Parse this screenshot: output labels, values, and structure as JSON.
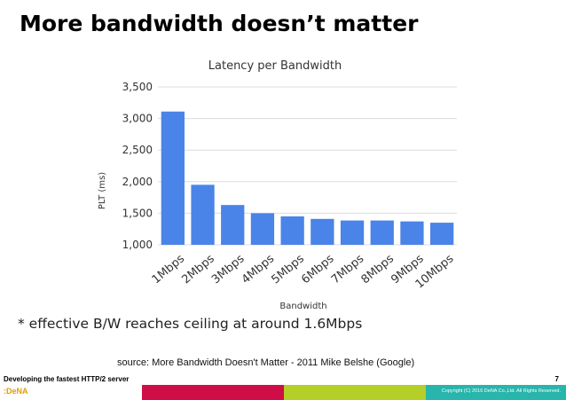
{
  "slide": {
    "title": "More bandwidth doesn’t matter",
    "note": "* effective B/W reaches ceiling at around 1.6Mbps",
    "source": "source: More Bandwidth Doesn't Matter - 2011 Mike Belshe (Google)",
    "footer_left": "Developing the fastest HTTP/2 server",
    "page_number": "7",
    "logo": ":DeNA",
    "copyright": "Copyright (C) 2016 DeNA Co.,Ltd. All Rights Reserved."
  },
  "colors": {
    "bar": "#4a84e8",
    "grid": "#dcdcdc",
    "footer_red": "#cf0d47",
    "footer_green": "#b4cf28",
    "footer_teal": "#27b5ac"
  },
  "chart_data": {
    "type": "bar",
    "title": "Latency per Bandwidth",
    "xlabel": "Bandwidth",
    "ylabel": "PLT (ms)",
    "categories": [
      "1Mbps",
      "2Mbps",
      "3Mbps",
      "4Mbps",
      "5Mbps",
      "6Mbps",
      "7Mbps",
      "8Mbps",
      "9Mbps",
      "10Mbps"
    ],
    "values": [
      3110,
      1950,
      1630,
      1500,
      1450,
      1410,
      1385,
      1385,
      1370,
      1350
    ],
    "ylim": [
      1000,
      3500
    ],
    "yticks": [
      1000,
      1500,
      2000,
      2500,
      3000,
      3500
    ],
    "ytick_labels": [
      "1,000",
      "1,500",
      "2,000",
      "2,500",
      "3,000",
      "3,500"
    ],
    "grid": true,
    "legend": "none"
  }
}
